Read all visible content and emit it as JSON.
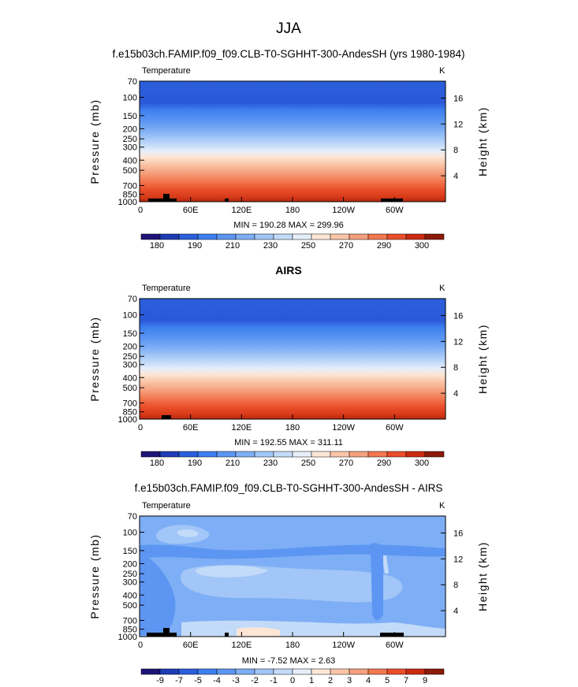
{
  "figure": {
    "supertitle": "JJA",
    "panels": [
      {
        "title": "f.e15b03ch.FAMIP.f09_f09.CLB-T0-SGHHT-300-AndesSH (yrs 1980-1984)",
        "variable": "Temperature",
        "units": "K",
        "stats": "MIN = 190.28   MAX = 299.96",
        "colorbar_labels": [
          "180",
          "190",
          "210",
          "230",
          "250",
          "270",
          "290",
          "300"
        ]
      },
      {
        "title": "AIRS",
        "variable": "Temperature",
        "units": "K",
        "stats": "MIN = 192.55   MAX = 311.11",
        "colorbar_labels": [
          "180",
          "190",
          "210",
          "230",
          "250",
          "270",
          "290",
          "300"
        ]
      },
      {
        "title": "f.e15b03ch.FAMIP.f09_f09.CLB-T0-SGHHT-300-AndesSH - AIRS",
        "variable": "Temperature",
        "units": "K",
        "stats": "MIN =   -7.52   MAX =    2.63",
        "colorbar_labels": [
          "-9",
          "-7",
          "-5",
          "-4",
          "-3",
          "-2",
          "-1",
          "0",
          "1",
          "2",
          "3",
          "4",
          "5",
          "7",
          "9"
        ]
      }
    ],
    "ylabel_left": "Pressure  (mb)",
    "ylabel_right": "Height  (km)"
  },
  "chart_data": [
    {
      "type": "heatmap",
      "title": "f.e15b03ch.FAMIP.f09_f09.CLB-T0-SGHHT-300-AndesSH (yrs 1980-1984)",
      "variable": "Temperature",
      "units": "K",
      "min": 190.28,
      "max": 299.96,
      "x_ticks": [
        "0",
        "60E",
        "120E",
        "180",
        "120W",
        "60W"
      ],
      "y_ticks_pressure_mb": [
        70,
        100,
        150,
        200,
        250,
        300,
        400,
        500,
        700,
        850,
        1000
      ],
      "y_ticks_height_km": [
        4,
        8,
        12,
        16
      ],
      "levels": [
        180,
        185,
        190,
        200,
        210,
        220,
        230,
        240,
        250,
        260,
        270,
        280,
        290,
        295,
        300
      ],
      "profile": [
        {
          "p": 70,
          "t": 205
        },
        {
          "p": 100,
          "t": 203
        },
        {
          "p": 130,
          "t": 207
        },
        {
          "p": 150,
          "t": 212
        },
        {
          "p": 200,
          "t": 222
        },
        {
          "p": 250,
          "t": 230
        },
        {
          "p": 300,
          "t": 238
        },
        {
          "p": 400,
          "t": 250
        },
        {
          "p": 500,
          "t": 260
        },
        {
          "p": 700,
          "t": 276
        },
        {
          "p": 850,
          "t": 286
        },
        {
          "p": 1000,
          "t": 296
        }
      ],
      "colors": [
        "#1e1478",
        "#1e3cb4",
        "#2c5fdc",
        "#3d7ff0",
        "#5c96f2",
        "#7eaef5",
        "#a1c6f7",
        "#c3dbf8",
        "#e6eefa",
        "#fde6d6",
        "#fac5a8",
        "#f6a07e",
        "#f27850",
        "#ea4e2a",
        "#cc2a10",
        "#8c1a08"
      ]
    },
    {
      "type": "heatmap",
      "title": "AIRS",
      "variable": "Temperature",
      "units": "K",
      "min": 192.55,
      "max": 311.11,
      "x_ticks": [
        "0",
        "60E",
        "120E",
        "180",
        "120W",
        "60W"
      ],
      "y_ticks_pressure_mb": [
        70,
        100,
        150,
        200,
        250,
        300,
        400,
        500,
        700,
        850,
        1000
      ],
      "y_ticks_height_km": [
        4,
        8,
        12,
        16
      ],
      "levels": [
        180,
        185,
        190,
        200,
        210,
        220,
        230,
        240,
        250,
        260,
        270,
        280,
        290,
        295,
        300
      ],
      "profile": [
        {
          "p": 70,
          "t": 206
        },
        {
          "p": 100,
          "t": 202
        },
        {
          "p": 130,
          "t": 206
        },
        {
          "p": 150,
          "t": 211
        },
        {
          "p": 200,
          "t": 221
        },
        {
          "p": 250,
          "t": 230
        },
        {
          "p": 300,
          "t": 238
        },
        {
          "p": 400,
          "t": 251
        },
        {
          "p": 500,
          "t": 261
        },
        {
          "p": 700,
          "t": 277
        },
        {
          "p": 850,
          "t": 287
        },
        {
          "p": 1000,
          "t": 298
        }
      ]
    },
    {
      "type": "heatmap",
      "title": "f.e15b03ch.FAMIP.f09_f09.CLB-T0-SGHHT-300-AndesSH - AIRS",
      "variable": "Temperature",
      "units": "K",
      "min": -7.52,
      "max": 2.63,
      "x_ticks": [
        "0",
        "60E",
        "120E",
        "180",
        "120W",
        "60W"
      ],
      "y_ticks_pressure_mb": [
        70,
        100,
        150,
        200,
        250,
        300,
        400,
        500,
        700,
        850,
        1000
      ],
      "y_ticks_height_km": [
        4,
        8,
        12,
        16
      ],
      "levels": [
        -9,
        -7,
        -5,
        -4,
        -3,
        -2,
        -1,
        0,
        1,
        2,
        3,
        4,
        5,
        7,
        9
      ],
      "dominant_range": [
        -3,
        -1
      ]
    }
  ]
}
